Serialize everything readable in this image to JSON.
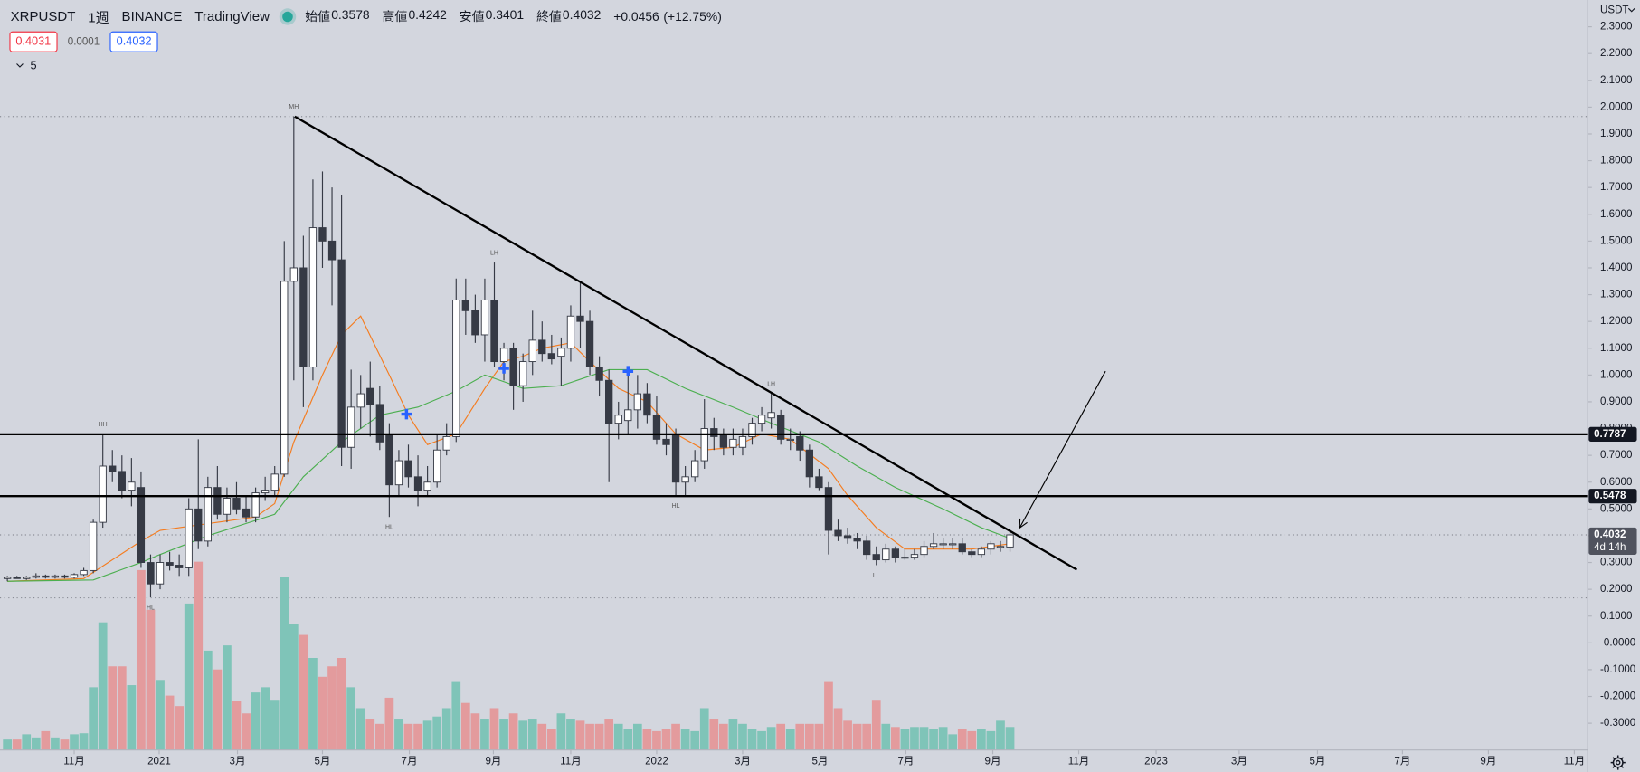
{
  "chart_data": {
    "type": "candlestick",
    "symbol": "XRPUSDT",
    "interval": "1週",
    "exchange": "BINANCE",
    "source": "TradingView",
    "ohlc_labels": [
      "始値",
      "高値",
      "安値",
      "終値"
    ],
    "change": "+0.0456",
    "change_pct": "(+12.75%)",
    "bid": 0.4031,
    "spread": 0.0001,
    "ask": 0.4032,
    "indicators": 5,
    "currency": "USDT",
    "countdown": "4d 14h",
    "open": [
      0.24,
      0.245,
      0.24,
      0.245,
      0.25,
      0.245,
      0.25,
      0.245,
      0.255,
      0.27,
      0.45,
      0.66,
      0.64,
      0.57,
      0.58,
      0.3,
      0.22,
      0.3,
      0.29,
      0.28,
      0.5,
      0.38,
      0.58,
      0.48,
      0.54,
      0.5,
      0.47,
      0.56,
      0.57,
      0.63,
      1.35,
      1.4,
      1.03,
      1.55,
      1.5,
      1.43,
      0.73,
      0.88,
      0.95,
      0.89,
      0.78,
      0.59,
      0.68,
      0.62,
      0.57,
      0.6,
      0.72,
      0.77,
      1.28,
      1.24,
      1.15,
      1.28,
      1.05,
      1.1,
      0.96,
      1.05,
      1.13,
      1.08,
      1.07,
      1.1,
      1.22,
      1.2,
      1.03,
      0.98,
      0.82,
      0.83,
      0.87,
      0.93,
      0.85,
      0.76,
      0.78,
      0.6,
      0.62,
      0.68,
      0.8,
      0.78,
      0.73,
      0.73,
      0.77,
      0.82,
      0.84,
      0.85,
      0.76,
      0.77,
      0.72,
      0.62,
      0.58,
      0.42,
      0.4,
      0.39,
      0.38,
      0.33,
      0.31,
      0.35,
      0.32,
      0.32,
      0.33,
      0.36,
      0.37,
      0.37,
      0.37,
      0.34,
      0.33,
      0.35,
      0.36,
      0.3578
    ],
    "high": [
      0.25,
      0.25,
      0.25,
      0.26,
      0.255,
      0.255,
      0.255,
      0.26,
      0.28,
      0.46,
      0.78,
      0.72,
      0.7,
      0.69,
      0.64,
      0.33,
      0.33,
      0.34,
      0.33,
      0.54,
      0.76,
      0.62,
      0.66,
      0.58,
      0.6,
      0.55,
      0.58,
      0.62,
      0.66,
      1.5,
      1.965,
      1.52,
      1.73,
      1.76,
      1.7,
      1.67,
      1.02,
      1.0,
      1.05,
      0.96,
      0.82,
      0.72,
      0.74,
      0.7,
      0.66,
      0.78,
      0.82,
      1.36,
      1.36,
      1.3,
      1.36,
      1.42,
      1.12,
      1.12,
      1.08,
      1.24,
      1.2,
      1.15,
      1.14,
      1.26,
      1.35,
      1.24,
      1.07,
      1.02,
      0.9,
      1.0,
      1.0,
      0.97,
      0.92,
      0.82,
      0.8,
      0.66,
      0.72,
      0.91,
      0.84,
      0.8,
      0.8,
      0.8,
      0.84,
      0.88,
      0.93,
      0.87,
      0.8,
      0.79,
      0.74,
      0.65,
      0.6,
      0.46,
      0.43,
      0.41,
      0.4,
      0.36,
      0.37,
      0.36,
      0.35,
      0.35,
      0.38,
      0.41,
      0.39,
      0.39,
      0.39,
      0.35,
      0.36,
      0.38,
      0.38,
      0.4242
    ],
    "low": [
      0.23,
      0.24,
      0.235,
      0.24,
      0.24,
      0.24,
      0.24,
      0.24,
      0.25,
      0.26,
      0.43,
      0.6,
      0.54,
      0.51,
      0.28,
      0.17,
      0.2,
      0.27,
      0.25,
      0.25,
      0.35,
      0.36,
      0.46,
      0.45,
      0.48,
      0.45,
      0.45,
      0.53,
      0.55,
      0.62,
      0.98,
      0.88,
      0.98,
      1.4,
      1.26,
      0.66,
      0.65,
      0.8,
      0.77,
      0.72,
      0.47,
      0.55,
      0.58,
      0.51,
      0.55,
      0.58,
      0.7,
      0.75,
      1.15,
      1.12,
      1.05,
      1.03,
      0.98,
      0.87,
      0.9,
      1.0,
      1.05,
      1.04,
      0.96,
      1.05,
      1.1,
      1.0,
      0.92,
      0.6,
      0.76,
      0.78,
      0.8,
      0.82,
      0.74,
      0.7,
      0.55,
      0.55,
      0.6,
      0.65,
      0.72,
      0.7,
      0.7,
      0.7,
      0.74,
      0.79,
      0.8,
      0.74,
      0.72,
      0.68,
      0.58,
      0.57,
      0.33,
      0.38,
      0.37,
      0.35,
      0.31,
      0.29,
      0.3,
      0.3,
      0.31,
      0.31,
      0.32,
      0.35,
      0.35,
      0.35,
      0.33,
      0.32,
      0.32,
      0.33,
      0.34,
      0.3401
    ],
    "close": [
      0.245,
      0.24,
      0.245,
      0.25,
      0.245,
      0.25,
      0.245,
      0.255,
      0.27,
      0.45,
      0.66,
      0.64,
      0.57,
      0.6,
      0.3,
      0.22,
      0.3,
      0.29,
      0.28,
      0.5,
      0.38,
      0.58,
      0.48,
      0.54,
      0.5,
      0.47,
      0.56,
      0.57,
      0.63,
      1.35,
      1.4,
      1.03,
      1.55,
      1.5,
      1.43,
      0.73,
      0.88,
      0.93,
      0.89,
      0.75,
      0.59,
      0.68,
      0.62,
      0.57,
      0.6,
      0.72,
      0.77,
      1.28,
      1.24,
      1.15,
      1.28,
      1.05,
      1.1,
      0.96,
      1.05,
      1.13,
      1.08,
      1.06,
      1.1,
      1.22,
      1.2,
      1.03,
      0.98,
      0.82,
      0.85,
      0.87,
      0.93,
      0.85,
      0.76,
      0.74,
      0.6,
      0.62,
      0.68,
      0.8,
      0.77,
      0.73,
      0.76,
      0.77,
      0.82,
      0.85,
      0.86,
      0.76,
      0.76,
      0.72,
      0.62,
      0.58,
      0.42,
      0.4,
      0.39,
      0.38,
      0.33,
      0.31,
      0.35,
      0.32,
      0.32,
      0.33,
      0.36,
      0.37,
      0.37,
      0.37,
      0.34,
      0.33,
      0.35,
      0.37,
      0.36,
      0.4032
    ],
    "volume": [
      10,
      10,
      15,
      12,
      18,
      12,
      10,
      15,
      16,
      60,
      122,
      80,
      80,
      62,
      172,
      134,
      67,
      52,
      42,
      140,
      180,
      95,
      77,
      100,
      47,
      35,
      55,
      60,
      48,
      165,
      120,
      110,
      88,
      70,
      80,
      88,
      60,
      40,
      30,
      25,
      50,
      30,
      25,
      25,
      28,
      32,
      40,
      65,
      45,
      35,
      30,
      40,
      30,
      35,
      28,
      30,
      25,
      20,
      35,
      30,
      28,
      25,
      25,
      30,
      25,
      20,
      25,
      20,
      18,
      20,
      25,
      20,
      18,
      40,
      30,
      25,
      30,
      25,
      20,
      18,
      22,
      25,
      20,
      25,
      25,
      25,
      65,
      40,
      28,
      25,
      25,
      48,
      25,
      22,
      20,
      22,
      22,
      20,
      22,
      15,
      20,
      18,
      20,
      18,
      28,
      22
    ],
    "up_color": "#ffffff",
    "down_color": "#363a45",
    "wick_color": "#363a45",
    "volume_up_color": "#7fc4b8",
    "volume_down_color": "#e39b9d",
    "ma": [
      {
        "color": "#f57c1f",
        "x": [
          0,
          8,
          14,
          16,
          20,
          26,
          28,
          30,
          33,
          35,
          37,
          40,
          42,
          44,
          47,
          50,
          52,
          54,
          56,
          59,
          61,
          64,
          67,
          70,
          73,
          76,
          79,
          82,
          86,
          88,
          91,
          94,
          98,
          101,
          105
        ],
        "values": [
          0.23,
          0.24,
          0.38,
          0.42,
          0.44,
          0.47,
          0.52,
          0.75,
          1.0,
          1.15,
          1.22,
          1.0,
          0.85,
          0.74,
          0.78,
          0.95,
          1.05,
          1.07,
          1.1,
          1.12,
          1.05,
          0.95,
          0.9,
          0.78,
          0.72,
          0.73,
          0.78,
          0.76,
          0.65,
          0.55,
          0.43,
          0.35,
          0.35,
          0.35,
          0.37
        ]
      },
      {
        "color": "#4caf50",
        "x": [
          0,
          9,
          14,
          16,
          21,
          28,
          31,
          35,
          39,
          43,
          47,
          50,
          54,
          58,
          63,
          67,
          71,
          76,
          80,
          85,
          89,
          93,
          98,
          102,
          105
        ],
        "values": [
          0.23,
          0.235,
          0.3,
          0.33,
          0.4,
          0.48,
          0.62,
          0.75,
          0.85,
          0.88,
          0.94,
          1.0,
          0.95,
          0.96,
          1.02,
          1.02,
          0.95,
          0.88,
          0.82,
          0.75,
          0.66,
          0.58,
          0.5,
          0.43,
          0.39
        ]
      }
    ],
    "hlines": [
      0.7787,
      0.5478
    ],
    "hline_color": "#000000",
    "trendline": {
      "x": [
        30.1,
        112
      ],
      "y": [
        1.965,
        0.273
      ]
    },
    "arrow": {
      "x": [
        115,
        106
      ],
      "y": [
        1.014,
        0.429
      ]
    },
    "dotted_levels": [
      1.965,
      0.168
    ],
    "pivots": [
      {
        "label": "MH",
        "index": 30,
        "at": "high"
      },
      {
        "label": "HH",
        "index": 10,
        "at": "high"
      },
      {
        "label": "HL",
        "index": 15,
        "at": "low"
      },
      {
        "label": "HL",
        "index": 40,
        "at": "low"
      },
      {
        "label": "LH",
        "index": 51,
        "at": "high"
      },
      {
        "label": "HL",
        "index": 70,
        "at": "low"
      },
      {
        "label": "LH",
        "index": 80,
        "at": "high"
      },
      {
        "label": "LL",
        "index": 91,
        "at": "low"
      }
    ],
    "signals": [
      {
        "index": 41.8,
        "value": 0.854
      },
      {
        "index": 52,
        "value": 1.025
      },
      {
        "index": 65,
        "value": 1.014
      }
    ],
    "signal_color": "#2962ff",
    "xlim": [
      -0.77,
      165.5
    ],
    "ylim": [
      -0.4,
      2.4
    ],
    "xticks": [
      {
        "value": 7,
        "label": "11月"
      },
      {
        "value": 15.9,
        "label": "2021"
      },
      {
        "value": 24.1,
        "label": "3月"
      },
      {
        "value": 33,
        "label": "5月"
      },
      {
        "value": 42.1,
        "label": "7月"
      },
      {
        "value": 50.9,
        "label": "9月"
      },
      {
        "value": 59,
        "label": "11月"
      },
      {
        "value": 68,
        "label": "2022"
      },
      {
        "value": 77,
        "label": "3月"
      },
      {
        "value": 85.1,
        "label": "5月"
      },
      {
        "value": 94.1,
        "label": "7月"
      },
      {
        "value": 103.2,
        "label": "9月"
      },
      {
        "value": 112.2,
        "label": "11月"
      },
      {
        "value": 120.3,
        "label": "2023"
      },
      {
        "value": 129,
        "label": "3月"
      },
      {
        "value": 137.2,
        "label": "5月"
      },
      {
        "value": 146.1,
        "label": "7月"
      },
      {
        "value": 155.1,
        "label": "9月"
      },
      {
        "value": 164.1,
        "label": "11月"
      }
    ],
    "yticks": [
      {
        "value": 2.3,
        "label": "2.3000"
      },
      {
        "value": 2.2,
        "label": "2.2000"
      },
      {
        "value": 2.1,
        "label": "2.1000"
      },
      {
        "value": 2,
        "label": "2.0000"
      },
      {
        "value": 1.9,
        "label": "1.9000"
      },
      {
        "value": 1.8,
        "label": "1.8000"
      },
      {
        "value": 1.7,
        "label": "1.7000"
      },
      {
        "value": 1.6,
        "label": "1.6000"
      },
      {
        "value": 1.5,
        "label": "1.5000"
      },
      {
        "value": 1.4,
        "label": "1.4000"
      },
      {
        "value": 1.3,
        "label": "1.3000"
      },
      {
        "value": 1.2,
        "label": "1.2000"
      },
      {
        "value": 1.1,
        "label": "1.1000"
      },
      {
        "value": 1,
        "label": "1.0000"
      },
      {
        "value": 0.9,
        "label": "0.9000"
      },
      {
        "value": 0.8,
        "label": "0.8000"
      },
      {
        "value": 0.7,
        "label": "0.7000"
      },
      {
        "value": 0.6,
        "label": "0.6000"
      },
      {
        "value": 0.5,
        "label": "0.5000"
      },
      {
        "value": 0.4,
        "label": "0.4000"
      },
      {
        "value": 0.3,
        "label": "0.3000"
      },
      {
        "value": 0.2,
        "label": "0.2000"
      },
      {
        "value": 0.1,
        "label": "0.1000"
      },
      {
        "value": 0,
        "label": "-0.0000"
      },
      {
        "value": -0.1,
        "label": "-0.1000"
      },
      {
        "value": -0.2,
        "label": "-0.2000"
      },
      {
        "value": -0.3,
        "label": "-0.3000"
      }
    ]
  }
}
